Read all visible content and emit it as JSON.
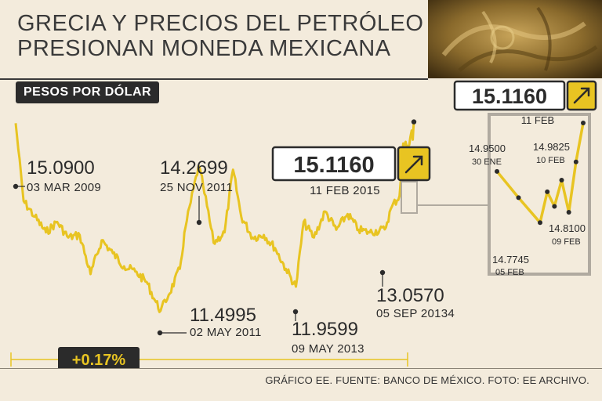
{
  "header": {
    "title_line1": "GRECIA Y PRECIOS DEL PETRÓLEO",
    "title_line2": "PRESIONAN MONEDA MEXICANA",
    "subtitle": "PESOS POR DÓLAR",
    "source": "GRÁFICO EE. FUENTE: BANCO DE MÉXICO. FOTO: EE ARCHIVO."
  },
  "colors": {
    "series": "#e8c422",
    "ink": "#2b2b2b",
    "background": "#f3ebdc",
    "inset_frame": "#b0aaa0"
  },
  "chart_data": {
    "type": "line",
    "title": "PESOS POR DÓLAR",
    "ylabel": "",
    "xlabel": "",
    "grid": false,
    "y_range": [
      11.0,
      15.5
    ],
    "main_series": {
      "name": "",
      "points": [
        {
          "date": "2009-03-03",
          "value": 15.09
        },
        {
          "date": "2009-04-15",
          "value": 13.6
        },
        {
          "date": "2009-06-15",
          "value": 13.3
        },
        {
          "date": "2009-08-15",
          "value": 13.0
        },
        {
          "date": "2009-10-15",
          "value": 13.2
        },
        {
          "date": "2009-12-15",
          "value": 12.9
        },
        {
          "date": "2010-02-15",
          "value": 12.95
        },
        {
          "date": "2010-04-15",
          "value": 12.2
        },
        {
          "date": "2010-06-15",
          "value": 12.85
        },
        {
          "date": "2010-08-15",
          "value": 12.6
        },
        {
          "date": "2010-10-15",
          "value": 12.35
        },
        {
          "date": "2010-12-15",
          "value": 12.25
        },
        {
          "date": "2011-02-15",
          "value": 12.05
        },
        {
          "date": "2011-04-01",
          "value": 11.7
        },
        {
          "date": "2011-05-02",
          "value": 11.4995
        },
        {
          "date": "2011-06-15",
          "value": 11.8
        },
        {
          "date": "2011-08-15",
          "value": 12.3
        },
        {
          "date": "2011-09-15",
          "value": 13.1
        },
        {
          "date": "2011-11-25",
          "value": 14.2699
        },
        {
          "date": "2011-12-20",
          "value": 13.9
        },
        {
          "date": "2012-02-15",
          "value": 12.8
        },
        {
          "date": "2012-04-15",
          "value": 13.0
        },
        {
          "date": "2012-05-31",
          "value": 14.2
        },
        {
          "date": "2012-07-15",
          "value": 13.3
        },
        {
          "date": "2012-09-15",
          "value": 12.9
        },
        {
          "date": "2012-11-15",
          "value": 12.95
        },
        {
          "date": "2013-01-15",
          "value": 12.7
        },
        {
          "date": "2013-03-15",
          "value": 12.3
        },
        {
          "date": "2013-05-09",
          "value": 11.9599
        },
        {
          "date": "2013-06-20",
          "value": 13.2
        },
        {
          "date": "2013-08-15",
          "value": 12.9
        },
        {
          "date": "2013-10-15",
          "value": 13.4
        },
        {
          "date": "2013-12-15",
          "value": 13.05
        },
        {
          "date": "2014-02-15",
          "value": 13.35
        },
        {
          "date": "2014-04-15",
          "value": 13.05
        },
        {
          "date": "2014-06-15",
          "value": 13.0
        },
        {
          "date": "2014-09-05",
          "value": 13.057
        },
        {
          "date": "2014-10-15",
          "value": 13.5
        },
        {
          "date": "2014-11-25",
          "value": 13.7
        },
        {
          "date": "2014-12-15",
          "value": 14.7
        },
        {
          "date": "2015-01-10",
          "value": 14.65
        },
        {
          "date": "2015-01-30",
          "value": 14.95
        },
        {
          "date": "2015-02-05",
          "value": 14.7745
        },
        {
          "date": "2015-02-11",
          "value": 15.116
        }
      ]
    },
    "inset_series": {
      "name": "",
      "points": [
        {
          "date": "2015-01-30",
          "value": 14.95
        },
        {
          "date": "2015-02-02",
          "value": 14.86
        },
        {
          "date": "2015-02-05",
          "value": 14.7745
        },
        {
          "date": "2015-02-06",
          "value": 14.88
        },
        {
          "date": "2015-02-07",
          "value": 14.83
        },
        {
          "date": "2015-02-08",
          "value": 14.92
        },
        {
          "date": "2015-02-09",
          "value": 14.81
        },
        {
          "date": "2015-02-10",
          "value": 14.9825
        },
        {
          "date": "2015-02-11",
          "value": 15.116
        }
      ]
    },
    "annotations": [
      {
        "id": "start",
        "value": "15.0900",
        "date": "03 MAR 2009"
      },
      {
        "id": "nov2011",
        "value": "14.2699",
        "date": "25 NOV 2011"
      },
      {
        "id": "may2011",
        "value": "11.4995",
        "date": "02 MAY 2011"
      },
      {
        "id": "may2013",
        "value": "11.9599",
        "date": "09 MAY 2013"
      },
      {
        "id": "sep2014",
        "value": "13.0570",
        "date": "05 SEP 20134"
      },
      {
        "id": "latest",
        "value": "15.1160",
        "date": "11 FEB 2015"
      }
    ],
    "inset_annotations": [
      {
        "id": "jan30",
        "value": "14.9500",
        "date": "30 ENE"
      },
      {
        "id": "feb05",
        "value": "14.7745",
        "date": "05 FEB"
      },
      {
        "id": "feb09",
        "value": "14.8100",
        "date": "09 FEB"
      },
      {
        "id": "feb10",
        "value": "14.9825",
        "date": "10 FEB"
      },
      {
        "id": "feb11",
        "value": "15.1160",
        "date": "11 FEB"
      }
    ],
    "change_badge": "+0.17%"
  }
}
